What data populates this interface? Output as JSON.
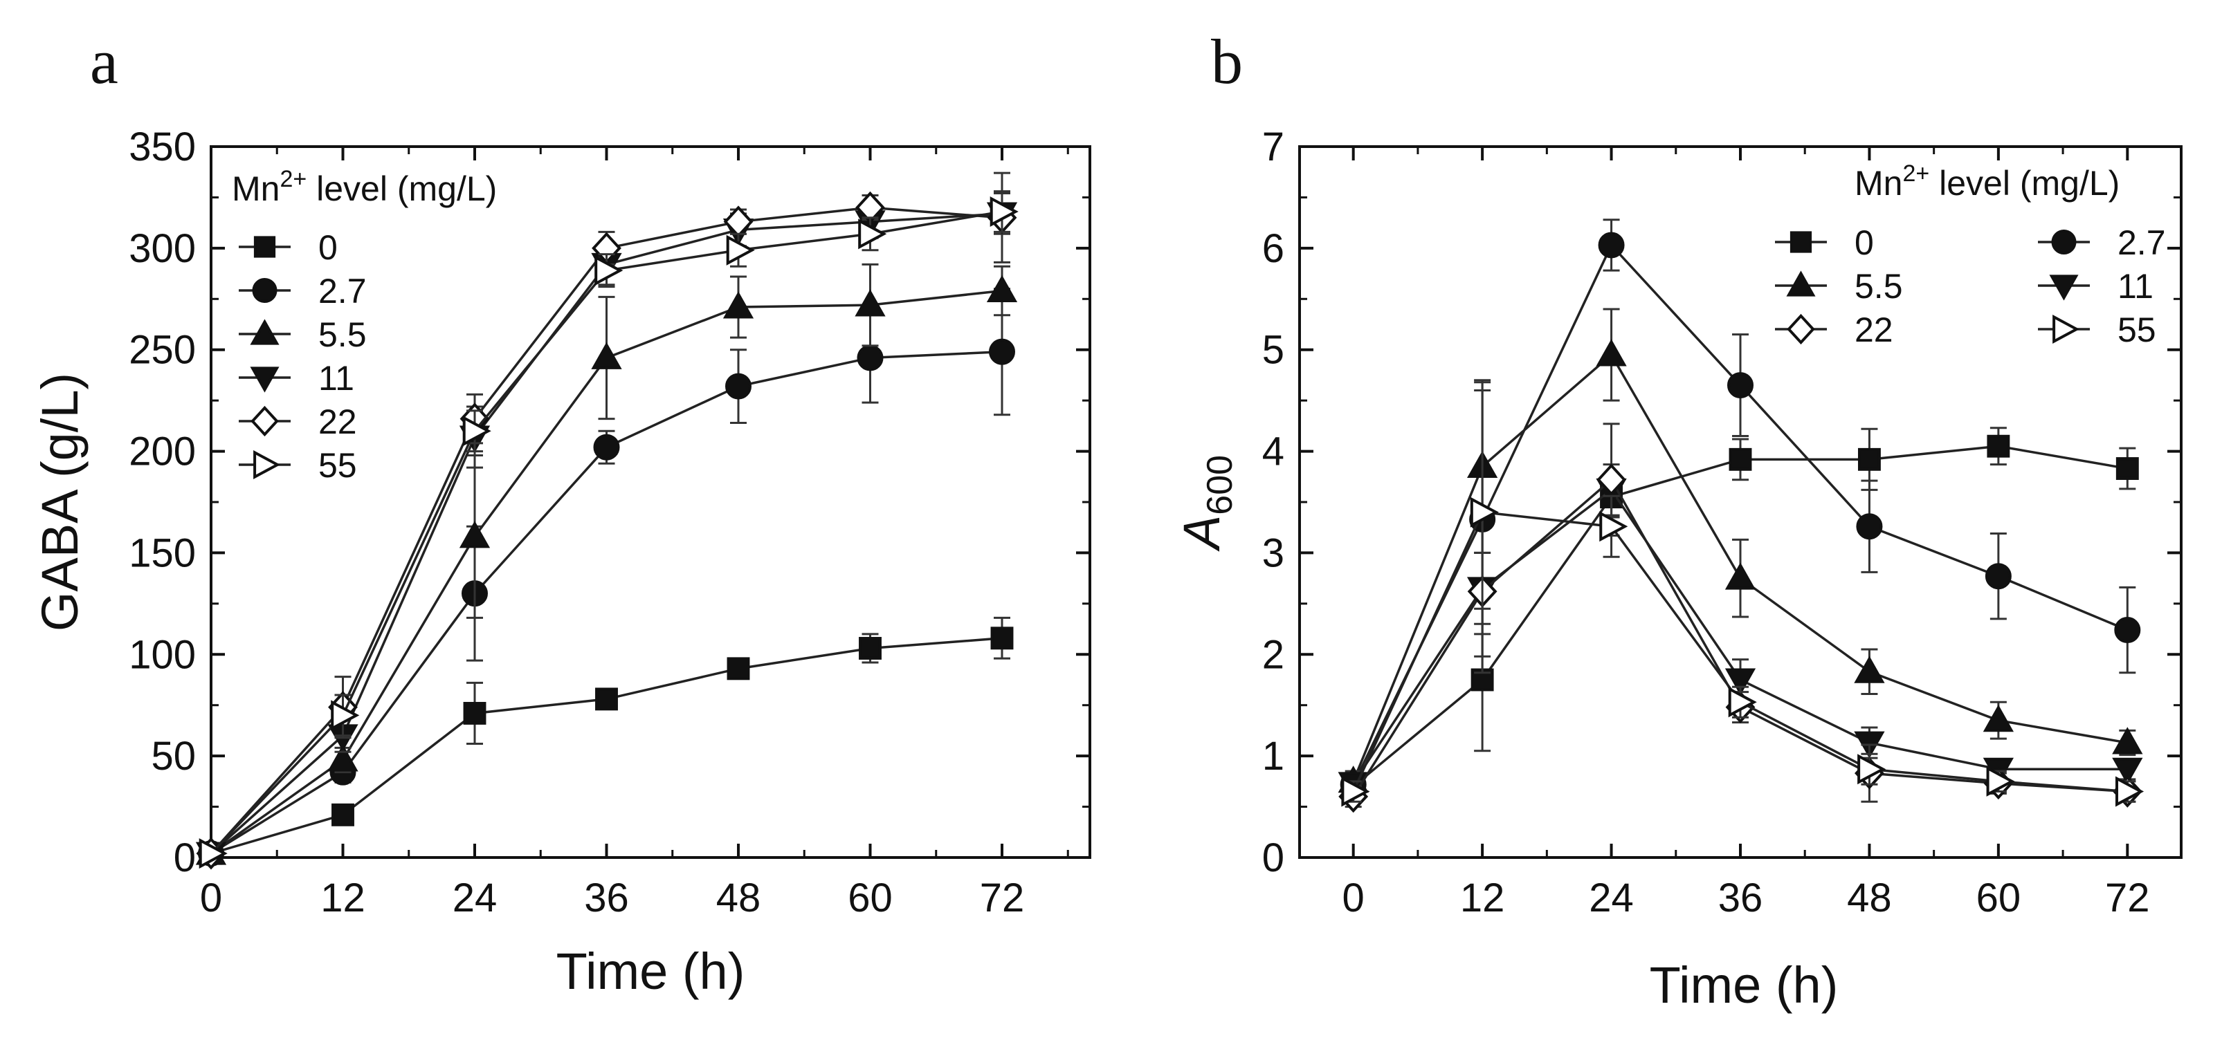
{
  "figure": {
    "panels": [
      "a",
      "b"
    ]
  },
  "legend_title_prefix": "Mn",
  "legend_title_sup": "2+",
  "legend_title_suffix": " level (mg/L)",
  "chart_data": [
    {
      "panel": "a",
      "type": "line",
      "title": "",
      "xlabel": "Time (h)",
      "ylabel": "GABA (g/L)",
      "xlim": [
        0,
        80
      ],
      "ylim": [
        0,
        350
      ],
      "xticks": [
        0,
        12,
        24,
        36,
        48,
        60,
        72
      ],
      "yticks": [
        0,
        50,
        100,
        150,
        200,
        250,
        300,
        350
      ],
      "x": [
        0,
        12,
        24,
        36,
        48,
        60,
        72
      ],
      "legend_position": "top-left",
      "series": [
        {
          "name": "0",
          "marker": "square",
          "filled": true,
          "values": [
            2,
            21,
            71,
            78,
            93,
            103,
            108
          ],
          "errors": [
            0,
            3,
            15,
            3,
            4,
            7,
            10
          ]
        },
        {
          "name": "2.7",
          "marker": "circle",
          "filled": true,
          "values": [
            2,
            42,
            130,
            202,
            232,
            246,
            249
          ],
          "errors": [
            0,
            5,
            33,
            8,
            18,
            22,
            31
          ]
        },
        {
          "name": "5.5",
          "marker": "triangle-up",
          "filled": true,
          "values": [
            2,
            48,
            158,
            246,
            271,
            272,
            279
          ],
          "errors": [
            0,
            6,
            40,
            30,
            15,
            20,
            12
          ]
        },
        {
          "name": "11",
          "marker": "triangle-down",
          "filled": true,
          "values": [
            2,
            60,
            207,
            292,
            309,
            313,
            317
          ],
          "errors": [
            0,
            8,
            15,
            10,
            8,
            8,
            10
          ]
        },
        {
          "name": "22",
          "marker": "diamond",
          "filled": false,
          "values": [
            2,
            74,
            216,
            300,
            313,
            320,
            315
          ],
          "errors": [
            0,
            15,
            12,
            8,
            6,
            6,
            22
          ]
        },
        {
          "name": "55",
          "marker": "triangle-right",
          "filled": false,
          "values": [
            2,
            70,
            210,
            289,
            299,
            307,
            318
          ],
          "errors": [
            0,
            10,
            10,
            8,
            8,
            8,
            10
          ]
        }
      ]
    },
    {
      "panel": "b",
      "type": "line",
      "title": "",
      "xlabel": "Time (h)",
      "ylabel": "A",
      "ylabel_sub": "600",
      "xlim": [
        -5,
        77
      ],
      "ylim": [
        0,
        7
      ],
      "xticks": [
        0,
        12,
        24,
        36,
        48,
        60,
        72
      ],
      "yticks": [
        0,
        1,
        2,
        3,
        4,
        5,
        6,
        7
      ],
      "x": [
        0,
        12,
        24,
        36,
        48,
        60,
        72
      ],
      "legend_position": "top-right",
      "series": [
        {
          "name": "0",
          "marker": "square",
          "filled": true,
          "values": [
            0.7,
            1.75,
            3.55,
            3.92,
            3.92,
            4.05,
            3.83
          ],
          "errors": [
            0.1,
            0.7,
            0.2,
            0.2,
            0.3,
            0.18,
            0.2
          ]
        },
        {
          "name": "2.7",
          "marker": "circle",
          "filled": true,
          "values": [
            0.72,
            3.33,
            6.03,
            4.65,
            3.26,
            2.77,
            2.24
          ],
          "errors": [
            0.1,
            1.35,
            0.25,
            0.5,
            0.45,
            0.42,
            0.42
          ]
        },
        {
          "name": "5.5",
          "marker": "triangle-up",
          "filled": true,
          "values": [
            0.75,
            3.85,
            4.95,
            2.75,
            1.83,
            1.35,
            1.13
          ],
          "errors": [
            0.1,
            0.85,
            0.45,
            0.38,
            0.22,
            0.18,
            0.12
          ]
        },
        {
          "name": "11",
          "marker": "triangle-down",
          "filled": true,
          "values": [
            0.73,
            2.65,
            3.62,
            1.75,
            1.13,
            0.87,
            0.87
          ],
          "errors": [
            0.1,
            0.35,
            0.25,
            0.2,
            0.15,
            0.1,
            0.1
          ]
        },
        {
          "name": "22",
          "marker": "diamond",
          "filled": false,
          "values": [
            0.6,
            2.62,
            3.72,
            1.48,
            0.83,
            0.73,
            0.65
          ],
          "errors": [
            0.1,
            0.8,
            0.55,
            0.15,
            0.28,
            0.1,
            0.1
          ]
        },
        {
          "name": "55",
          "marker": "triangle-right",
          "filled": false,
          "values": [
            0.65,
            3.4,
            3.26,
            1.53,
            0.87,
            0.75,
            0.65
          ],
          "errors": [
            0.1,
            1.2,
            0.3,
            0.15,
            0.15,
            0.1,
            0.1
          ]
        }
      ]
    }
  ]
}
